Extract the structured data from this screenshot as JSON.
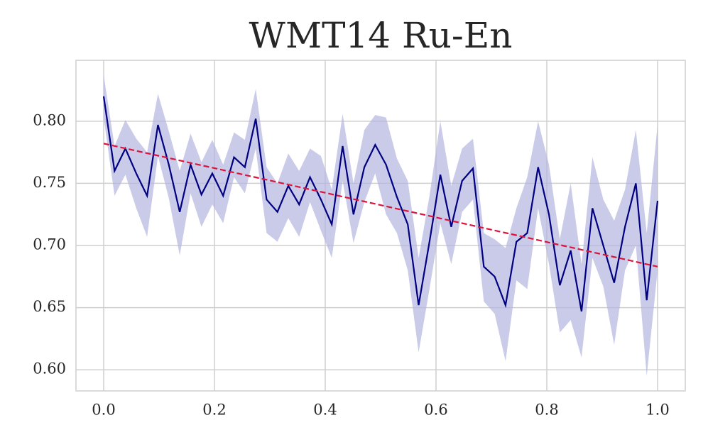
{
  "chart_data": {
    "type": "line",
    "title": "WMT14 Ru-En",
    "x": [
      0,
      0.0196,
      0.0392,
      0.0588,
      0.0784,
      0.098,
      0.1176,
      0.1373,
      0.1569,
      0.1765,
      0.1961,
      0.2157,
      0.2353,
      0.2549,
      0.2745,
      0.2941,
      0.3137,
      0.3333,
      0.3529,
      0.3725,
      0.3922,
      0.4118,
      0.4314,
      0.451,
      0.4706,
      0.4902,
      0.5098,
      0.5294,
      0.549,
      0.5686,
      0.5882,
      0.6078,
      0.6275,
      0.6471,
      0.6667,
      0.6863,
      0.7059,
      0.7255,
      0.7451,
      0.7647,
      0.7843,
      0.8039,
      0.8235,
      0.8431,
      0.8627,
      0.8824,
      0.902,
      0.9216,
      0.9412,
      0.9608,
      0.9804,
      1
    ],
    "series": [
      {
        "color": "#000080",
        "band_color": "#b3b5e0",
        "values": [
          0.82,
          0.76,
          0.778,
          0.758,
          0.74,
          0.797,
          0.765,
          0.727,
          0.765,
          0.741,
          0.758,
          0.74,
          0.771,
          0.763,
          0.802,
          0.737,
          0.727,
          0.748,
          0.733,
          0.755,
          0.737,
          0.717,
          0.78,
          0.725,
          0.763,
          0.781,
          0.765,
          0.739,
          0.717,
          0.652,
          0.703,
          0.757,
          0.715,
          0.752,
          0.762,
          0.683,
          0.675,
          0.652,
          0.703,
          0.71,
          0.763,
          0.725,
          0.668,
          0.696,
          0.647,
          0.73,
          0.7,
          0.67,
          0.715,
          0.75,
          0.656,
          0.736
        ],
        "lower": [
          0.803,
          0.74,
          0.757,
          0.73,
          0.707,
          0.772,
          0.738,
          0.692,
          0.742,
          0.715,
          0.733,
          0.718,
          0.755,
          0.742,
          0.778,
          0.71,
          0.703,
          0.722,
          0.707,
          0.735,
          0.712,
          0.69,
          0.752,
          0.702,
          0.735,
          0.758,
          0.725,
          0.71,
          0.68,
          0.614,
          0.665,
          0.718,
          0.685,
          0.727,
          0.737,
          0.655,
          0.645,
          0.607,
          0.672,
          0.665,
          0.73,
          0.685,
          0.63,
          0.64,
          0.61,
          0.69,
          0.667,
          0.62,
          0.68,
          0.7,
          0.595,
          0.68
        ],
        "upper": [
          0.837,
          0.78,
          0.801,
          0.786,
          0.775,
          0.822,
          0.792,
          0.76,
          0.79,
          0.767,
          0.785,
          0.765,
          0.791,
          0.785,
          0.826,
          0.763,
          0.75,
          0.774,
          0.76,
          0.778,
          0.772,
          0.745,
          0.806,
          0.75,
          0.793,
          0.805,
          0.803,
          0.77,
          0.752,
          0.69,
          0.74,
          0.8,
          0.748,
          0.778,
          0.786,
          0.71,
          0.705,
          0.698,
          0.73,
          0.755,
          0.8,
          0.765,
          0.705,
          0.75,
          0.685,
          0.771,
          0.737,
          0.72,
          0.745,
          0.793,
          0.71,
          0.797
        ]
      }
    ],
    "trend": {
      "x": [
        0,
        1
      ],
      "values": [
        0.782,
        0.683
      ],
      "color": "#dc143c",
      "dashed": true
    },
    "xlim": [
      -0.05,
      1.05
    ],
    "ylim": [
      0.583,
      0.849
    ],
    "xticks": [
      {
        "value": 0,
        "label": "0.0"
      },
      0.2,
      0.4,
      0.6,
      0.8,
      {
        "value": 1,
        "label": "1.0"
      }
    ],
    "yticks": [
      {
        "value": 0.6,
        "label": "0.60"
      },
      0.65,
      {
        "value": 0.7,
        "label": "0.70"
      },
      0.75,
      {
        "value": 0.8,
        "label": "0.80"
      }
    ],
    "grid": true
  }
}
